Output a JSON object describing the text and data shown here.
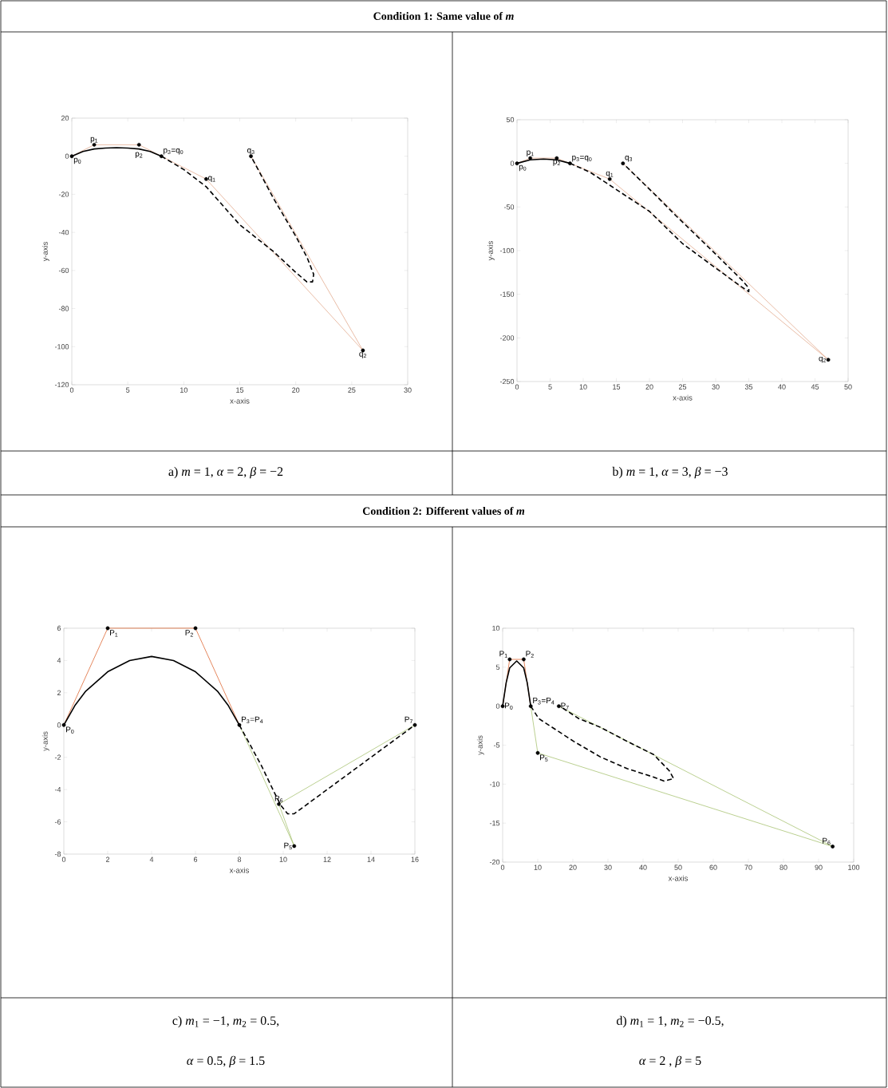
{
  "chart_data": [
    {
      "type": "line",
      "title": "Condition 1: Same value of *m*",
      "xlabel": "x-axis",
      "ylabel": "y-axis",
      "xlim": [
        0,
        30
      ],
      "ylim": [
        -120,
        20
      ],
      "xticks": [
        0,
        5,
        10,
        15,
        20,
        25,
        30
      ],
      "yticks": [
        -120,
        -100,
        -80,
        -60,
        -40,
        -20,
        0,
        20
      ],
      "series": [
        {
          "type": "line",
          "color": "#e0a080",
          "line_style": "solid",
          "x": [
            0,
            2,
            6,
            8,
            12,
            26,
            16
          ],
          "values": [
            0,
            6,
            6,
            0,
            -12,
            -102,
            0
          ]
        },
        {
          "type": "line",
          "color": "#000000",
          "line_style": "solid",
          "x": [
            0,
            1,
            2,
            3,
            4,
            5,
            6,
            7,
            8
          ],
          "values": [
            0,
            2.5,
            3.8,
            4.3,
            4.5,
            4.3,
            3.8,
            2.5,
            0
          ]
        },
        {
          "type": "line",
          "color": "#000000",
          "line_style": "dashed",
          "x": [
            8,
            10,
            12,
            15,
            18,
            20,
            21,
            21.5,
            21.6,
            21,
            20,
            18,
            16
          ],
          "values": [
            0,
            -7,
            -16,
            -36,
            -50,
            -61,
            -66,
            -66,
            -62,
            -53,
            -42,
            -22,
            0
          ]
        },
        {
          "type": "scatter",
          "color": "#000000",
          "x": [
            0,
            2,
            6,
            8,
            12,
            26,
            16
          ],
          "values": [
            0,
            6,
            6,
            0,
            -12,
            -102,
            0
          ]
        }
      ],
      "annotations": [
        {
          "text": "p$_{0}$",
          "x": 0,
          "y": 0
        },
        {
          "text": "p$_{1}$",
          "x": 2,
          "y": 6
        },
        {
          "text": "p$_{2}$",
          "x": 6,
          "y": 6
        },
        {
          "text": "p$_{3}$=q$_{0}$",
          "x": 8,
          "y": 0
        },
        {
          "text": "q$_{1}$",
          "x": 12,
          "y": -12
        },
        {
          "text": "q$_{2}$",
          "x": 26,
          "y": -102
        },
        {
          "text": "q$_{3}$",
          "x": 16,
          "y": 0
        },
        "a)  *m* = 1, *α* = 2,  *β* = −2"
      ]
    },
    {
      "type": "line",
      "xlabel": "x-axis",
      "ylabel": "y-axis",
      "xlim": [
        0,
        50
      ],
      "ylim": [
        -250,
        50
      ],
      "xticks": [
        0,
        5,
        10,
        15,
        20,
        25,
        30,
        35,
        40,
        45,
        50
      ],
      "yticks": [
        -250,
        -200,
        -150,
        -100,
        -50,
        0,
        50
      ],
      "series": [
        {
          "type": "line",
          "color": "#e0a080",
          "line_style": "solid",
          "x": [
            0,
            2,
            6,
            8,
            14,
            47,
            16
          ],
          "values": [
            0,
            6,
            6,
            0,
            -18,
            -225,
            0
          ]
        },
        {
          "type": "line",
          "color": "#000000",
          "line_style": "solid",
          "x": [
            0,
            2,
            4,
            6,
            8
          ],
          "values": [
            0,
            4,
            5,
            4,
            0
          ]
        },
        {
          "type": "line",
          "color": "#000000",
          "line_style": "dashed",
          "x": [
            8,
            11,
            14,
            20,
            25,
            30,
            34,
            35,
            35,
            34,
            30,
            24,
            21,
            16
          ],
          "values": [
            0,
            -10,
            -25,
            -55,
            -92,
            -120,
            -142,
            -147,
            -143,
            -134,
            -104,
            -60,
            -37,
            0
          ]
        },
        {
          "type": "scatter",
          "color": "#000000",
          "x": [
            0,
            2,
            6,
            8,
            14,
            47,
            16
          ],
          "values": [
            0,
            6,
            6,
            0,
            -18,
            -225,
            0
          ]
        }
      ],
      "annotations": [
        {
          "text": "p$_{0}$",
          "x": 0,
          "y": 0
        },
        {
          "text": "p$_{1}$",
          "x": 2,
          "y": 6
        },
        {
          "text": "p$_{2}$",
          "x": 6,
          "y": 6
        },
        {
          "text": "p$_{3}$=q$_{0}$",
          "x": 8,
          "y": 0
        },
        {
          "text": "q$_{1}$",
          "x": 14,
          "y": -18
        },
        {
          "text": "q$_{2}$",
          "x": 47,
          "y": -225
        },
        {
          "text": "q$_{3}$",
          "x": 16,
          "y": 0
        },
        "b)  *m* = 1, *α* = 3,  *β* = −3"
      ]
    },
    {
      "type": "line",
      "title": "Condition 2: Different values of *m*",
      "xlabel": "x-axis",
      "ylabel": "y-axis",
      "xlim": [
        0,
        16
      ],
      "ylim": [
        -8,
        6
      ],
      "xticks": [
        0,
        2,
        4,
        6,
        8,
        10,
        12,
        14,
        16
      ],
      "yticks": [
        -8,
        -6,
        -4,
        -2,
        0,
        2,
        4,
        6
      ],
      "series": [
        {
          "type": "line",
          "color": "#d95319",
          "line_style": "solid",
          "x": [
            0,
            2,
            6,
            8
          ],
          "values": [
            0,
            6,
            6,
            0
          ]
        },
        {
          "type": "line",
          "color": "#9dbb61",
          "line_style": "solid",
          "x": [
            8,
            10.5,
            9.8,
            16
          ],
          "values": [
            0,
            -7.5,
            -4.9,
            0
          ]
        },
        {
          "type": "line",
          "color": "#000000",
          "line_style": "solid",
          "x": [
            0,
            0.5,
            1,
            2,
            3,
            4,
            5,
            6,
            7,
            7.5,
            8
          ],
          "values": [
            0,
            1.2,
            2.1,
            3.3,
            4,
            4.25,
            4,
            3.3,
            2.1,
            1.2,
            0
          ]
        },
        {
          "type": "line",
          "color": "#000000",
          "line_style": "dashed",
          "x": [
            8,
            9,
            9.6,
            9.9,
            10.2,
            10.5,
            12,
            14,
            16
          ],
          "values": [
            0,
            -2.5,
            -4.2,
            -5,
            -5.5,
            -5.5,
            -4,
            -2,
            0
          ]
        },
        {
          "type": "scatter",
          "color": "#000000",
          "x": [
            0,
            2,
            6,
            8,
            10.5,
            9.8,
            16
          ],
          "values": [
            0,
            6,
            6,
            0,
            -7.5,
            -4.9,
            0
          ]
        }
      ],
      "annotations": [
        {
          "text": "P$_{0}$",
          "x": 0,
          "y": 0
        },
        {
          "text": "P$_{1}$",
          "x": 2,
          "y": 6
        },
        {
          "text": "P$_{2}$",
          "x": 6,
          "y": 6
        },
        {
          "text": "P$_{3}$=P$_{4}$",
          "x": 8,
          "y": 0
        },
        {
          "text": "P$_{5}$",
          "x": 10.5,
          "y": -7.5
        },
        {
          "text": "P$_{6}$",
          "x": 9.8,
          "y": -4.9
        },
        {
          "text": "P$_{7}$",
          "x": 16,
          "y": 0
        },
        "c)  *m*$_{1}$ = −1, *m*$_{2}$ = 0.5,",
        "*α* = 0.5, *β* = 1.5"
      ]
    },
    {
      "type": "line",
      "xlabel": "x-axis",
      "ylabel": "y-axis",
      "xlim": [
        0,
        100
      ],
      "ylim": [
        -20,
        10
      ],
      "xticks": [
        0,
        10,
        20,
        30,
        40,
        50,
        60,
        70,
        80,
        90,
        100
      ],
      "yticks": [
        -20,
        -15,
        -10,
        -5,
        0,
        5,
        10
      ],
      "series": [
        {
          "type": "line",
          "color": "#d95319",
          "line_style": "solid",
          "x": [
            0,
            2,
            6,
            8
          ],
          "values": [
            0,
            6,
            6,
            0
          ]
        },
        {
          "type": "line",
          "color": "#9dbb61",
          "line_style": "solid",
          "x": [
            8,
            10,
            94,
            16
          ],
          "values": [
            0,
            -6,
            -18,
            0
          ]
        },
        {
          "type": "line",
          "color": "#000000",
          "line_style": "solid",
          "x": [
            0,
            1,
            2,
            4,
            6,
            7,
            8
          ],
          "values": [
            0,
            3,
            4.9,
            5.8,
            4.9,
            3,
            0
          ]
        },
        {
          "type": "line",
          "color": "#000000",
          "line_style": "dashed",
          "x": [
            8,
            10.3,
            20.2,
            27.8,
            35.4,
            43,
            46,
            48.7,
            47.5,
            43,
            35.4,
            27.8,
            21.7,
            16.3
          ],
          "values": [
            0,
            -1.6,
            -4.5,
            -6.5,
            -8,
            -9.1,
            -9.6,
            -9.3,
            -8.3,
            -6.2,
            -4.5,
            -2.7,
            -1.6,
            0
          ]
        },
        {
          "type": "scatter",
          "color": "#000000",
          "x": [
            0,
            2,
            6,
            8,
            10,
            94,
            16
          ],
          "values": [
            0,
            6,
            6,
            0,
            -6,
            -18,
            0
          ]
        }
      ],
      "annotations": [
        {
          "text": "P$_{0}$",
          "x": 0,
          "y": 0
        },
        {
          "text": "P$_{1}$",
          "x": 2,
          "y": 6
        },
        {
          "text": "P$_{2}$",
          "x": 6,
          "y": 6
        },
        {
          "text": "P$_{3}$=P$_{4}$",
          "x": 8,
          "y": 0
        },
        {
          "text": "P$_{5}$",
          "x": 10,
          "y": -6
        },
        {
          "text": "P$_{6}$",
          "x": 94,
          "y": -18
        },
        {
          "text": "P$_{7}$",
          "x": 16,
          "y": 0
        },
        "d)  *m*$_{1}$ = 1, *m*$_{2}$ = −0.5,",
        "*α* = 2 , *β* = 5"
      ]
    }
  ]
}
